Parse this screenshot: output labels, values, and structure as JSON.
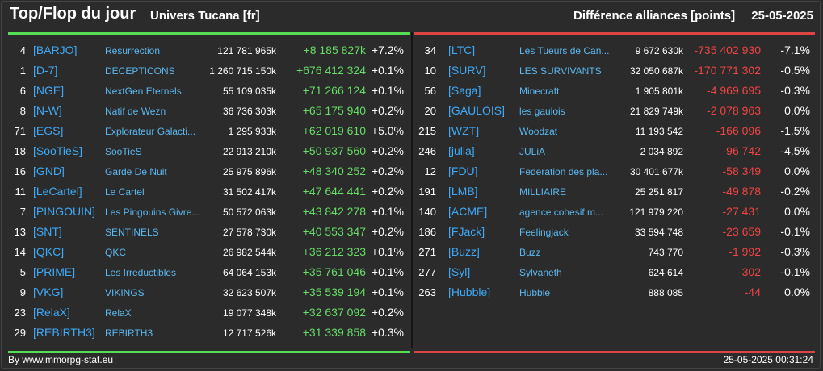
{
  "header": {
    "title": "Top/Flop du jour",
    "subtitle": "Univers Tucana [fr]",
    "metric": "Différence alliances [points]",
    "date": "25-05-2025"
  },
  "top": [
    {
      "rank": "4",
      "tag": "[BARJO]",
      "name": "Resurrection",
      "points": "121 781 965k",
      "diff": "+8 185 827k",
      "pct": "+7.2%"
    },
    {
      "rank": "1",
      "tag": "[D-7]",
      "name": "DECEPTICONS",
      "points": "1 260 715 150k",
      "diff": "+676 412 324",
      "pct": "+0.1%"
    },
    {
      "rank": "6",
      "tag": "[NGE]",
      "name": "NextGen Eternels",
      "points": "55 109 035k",
      "diff": "+71 266 124",
      "pct": "+0.1%"
    },
    {
      "rank": "8",
      "tag": "[N-W]",
      "name": "Natif de Wezn",
      "points": "36 736 303k",
      "diff": "+65 175 940",
      "pct": "+0.2%"
    },
    {
      "rank": "71",
      "tag": "[EGS]",
      "name": "Explorateur Galacti...",
      "points": "1 295 933k",
      "diff": "+62 019 610",
      "pct": "+5.0%"
    },
    {
      "rank": "18",
      "tag": "[SooTieS]",
      "name": "SooTieS",
      "points": "22 913 210k",
      "diff": "+50 937 560",
      "pct": "+0.2%"
    },
    {
      "rank": "16",
      "tag": "[GND]",
      "name": "Garde De Nuit",
      "points": "25 975 896k",
      "diff": "+48 340 252",
      "pct": "+0.2%"
    },
    {
      "rank": "11",
      "tag": "[LeCartel]",
      "name": "Le Cartel",
      "points": "31 502 417k",
      "diff": "+47 644 441",
      "pct": "+0.2%"
    },
    {
      "rank": "7",
      "tag": "[PINGOUIN]",
      "name": "Les Pingouins Givre...",
      "points": "50 572 063k",
      "diff": "+43 842 278",
      "pct": "+0.1%"
    },
    {
      "rank": "13",
      "tag": "[SNT]",
      "name": "SENTINELS",
      "points": "27 578 730k",
      "diff": "+40 553 347",
      "pct": "+0.2%"
    },
    {
      "rank": "14",
      "tag": "[QKC]",
      "name": "QKC",
      "points": "26 982 544k",
      "diff": "+36 212 323",
      "pct": "+0.1%"
    },
    {
      "rank": "5",
      "tag": "[PRIME]",
      "name": "Les Irreductibles",
      "points": "64 064 153k",
      "diff": "+35 761 046",
      "pct": "+0.1%"
    },
    {
      "rank": "9",
      "tag": "[VKG]",
      "name": "VIKINGS",
      "points": "32 623 507k",
      "diff": "+35 539 194",
      "pct": "+0.1%"
    },
    {
      "rank": "23",
      "tag": "[RelaX]",
      "name": "RelaX",
      "points": "19 077 348k",
      "diff": "+32 637 092",
      "pct": "+0.2%"
    },
    {
      "rank": "29",
      "tag": "[REBIRTH3]",
      "name": "REBIRTH3",
      "points": "12 717 526k",
      "diff": "+31 339 858",
      "pct": "+0.3%"
    }
  ],
  "flop": [
    {
      "rank": "34",
      "tag": "[LTC]",
      "name": "Les Tueurs de Can...",
      "points": "9 672 630k",
      "diff": "-735 402 930",
      "pct": "-7.1%"
    },
    {
      "rank": "10",
      "tag": "[SURV]",
      "name": "LES SURVIVANTS",
      "points": "32 050 687k",
      "diff": "-170 771 302",
      "pct": "-0.5%"
    },
    {
      "rank": "56",
      "tag": "[Saga]",
      "name": "Minecraft",
      "points": "1 905 801k",
      "diff": "-4 969 695",
      "pct": "-0.3%"
    },
    {
      "rank": "20",
      "tag": "[GAULOIS]",
      "name": "les gaulois",
      "points": "21 829 749k",
      "diff": "-2 078 963",
      "pct": "0.0%"
    },
    {
      "rank": "215",
      "tag": "[WZT]",
      "name": "Woodzat",
      "points": "11 193 542",
      "diff": "-166 096",
      "pct": "-1.5%"
    },
    {
      "rank": "246",
      "tag": "[julia]",
      "name": "JULiA",
      "points": "2 034 892",
      "diff": "-96 742",
      "pct": "-4.5%"
    },
    {
      "rank": "12",
      "tag": "[FDU]",
      "name": "Federation des pla...",
      "points": "30 401 677k",
      "diff": "-58 349",
      "pct": "0.0%"
    },
    {
      "rank": "191",
      "tag": "[LMB]",
      "name": "MILLIAIRE",
      "points": "25 251 817",
      "diff": "-49 878",
      "pct": "-0.2%"
    },
    {
      "rank": "140",
      "tag": "[ACME]",
      "name": "agence cohesif m...",
      "points": "121 979 220",
      "diff": "-27 431",
      "pct": "0.0%"
    },
    {
      "rank": "186",
      "tag": "[FJack]",
      "name": "Feelingjack",
      "points": "33 594 748",
      "diff": "-23 659",
      "pct": "-0.1%"
    },
    {
      "rank": "271",
      "tag": "[Buzz]",
      "name": "Buzz",
      "points": "743 770",
      "diff": "-1 992",
      "pct": "-0.3%"
    },
    {
      "rank": "277",
      "tag": "[Syl]",
      "name": "Sylvaneth",
      "points": "624 614",
      "diff": "-302",
      "pct": "-0.1%"
    },
    {
      "rank": "263",
      "tag": "[Hubble]",
      "name": "Hubble",
      "points": "888 085",
      "diff": "-44",
      "pct": "0.0%"
    }
  ],
  "footer": {
    "credit": "By www.mmorpg-stat.eu",
    "timestamp": "25-05-2025 00:31:24"
  },
  "colors": {
    "background": "#2b2b2b",
    "top_accent": "#55dd55",
    "flop_accent": "#dd4444",
    "tag": "#3fa9f5",
    "name": "#5bb8f0"
  }
}
